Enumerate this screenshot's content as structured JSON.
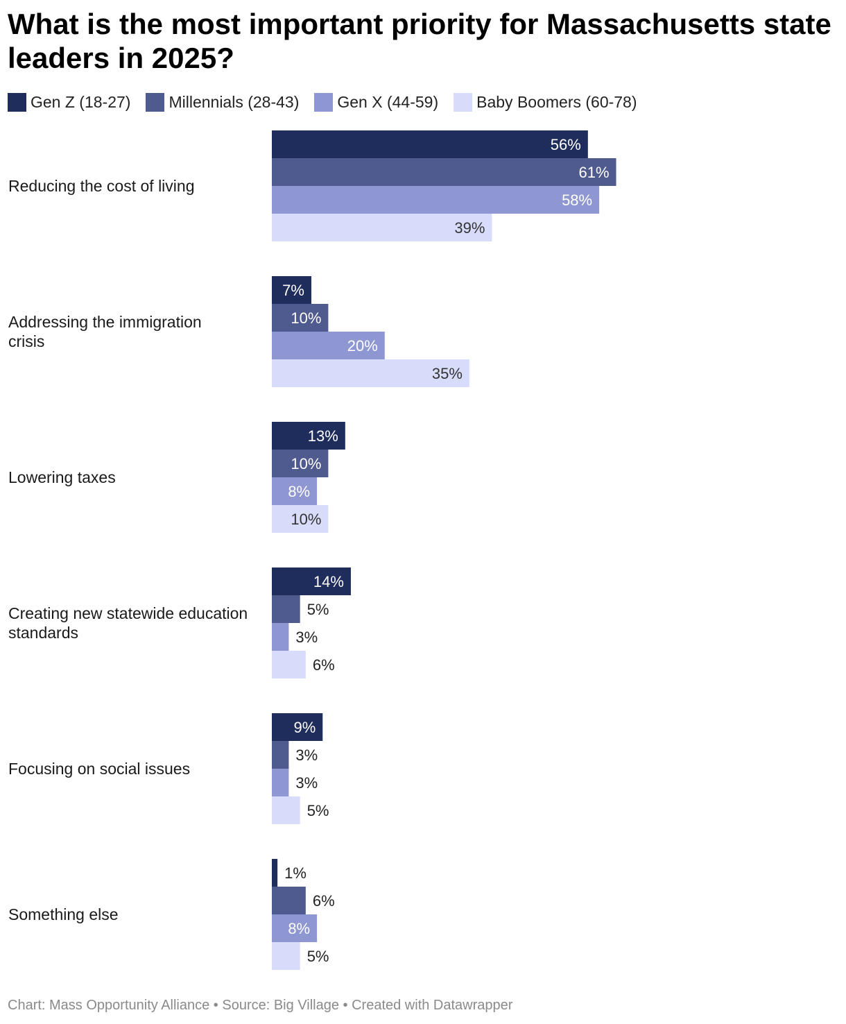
{
  "chart_data": {
    "type": "bar",
    "orientation": "horizontal",
    "title": "What is the most important priority for Massachusetts state leaders in 2025?",
    "categories": [
      "Reducing the cost of living",
      "Addressing the immigration crisis",
      "Lowering taxes",
      "Creating new statewide education standards",
      "Focusing on social issues",
      "Something else"
    ],
    "series": [
      {
        "name": "Gen Z (18-27)",
        "color": "#1f2d5c",
        "values": [
          56,
          7,
          13,
          14,
          9,
          1
        ]
      },
      {
        "name": "Millennials (28-43)",
        "color": "#4f5a8f",
        "values": [
          61,
          10,
          10,
          5,
          3,
          6
        ]
      },
      {
        "name": "Gen X (44-59)",
        "color": "#8e97d1",
        "values": [
          58,
          20,
          8,
          3,
          3,
          8
        ]
      },
      {
        "name": "Baby Boomers (60-78)",
        "color": "#d8dcfb",
        "values": [
          39,
          35,
          10,
          6,
          5,
          5
        ]
      }
    ],
    "value_suffix": "%",
    "xlim": [
      0,
      100
    ],
    "xlabel": "",
    "ylabel": "",
    "grid": false,
    "legend_position": "top-left"
  },
  "footer": "Chart: Mass Opportunity Alliance • Source: Big Village • Created with Datawrapper"
}
